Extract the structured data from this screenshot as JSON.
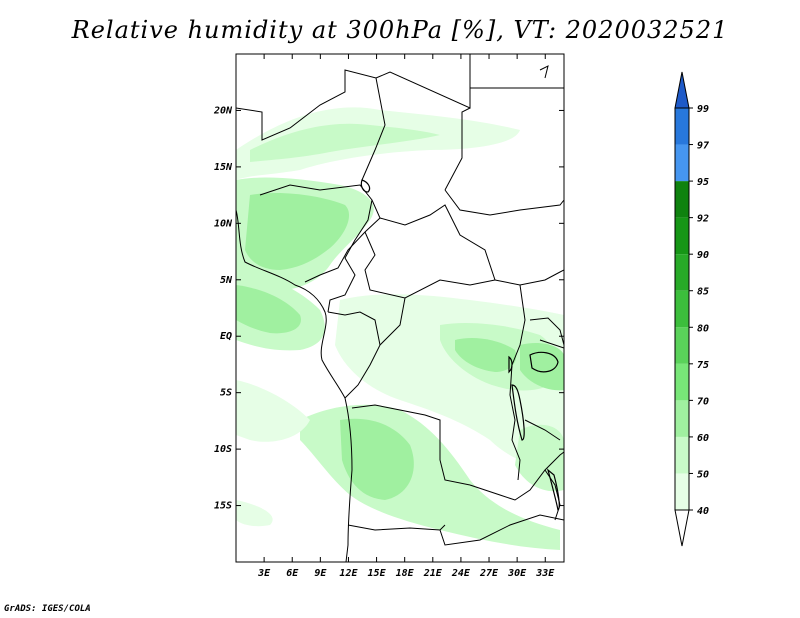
{
  "map": {
    "title": "Relative humidity at 300hPa [%], VT: 2020032521",
    "credit": "GrADS: IGES/COLA",
    "lat_labels": [
      "20N",
      "15N",
      "10N",
      "5N",
      "EQ",
      "5S",
      "10S",
      "15S"
    ],
    "lat_values": [
      20,
      15,
      10,
      5,
      0,
      -5,
      -10,
      -15
    ],
    "lon_labels": [
      "3E",
      "6E",
      "9E",
      "12E",
      "15E",
      "18E",
      "21E",
      "24E",
      "27E",
      "30E",
      "33E"
    ],
    "lon_values": [
      3,
      6,
      9,
      12,
      15,
      18,
      21,
      24,
      27,
      30,
      33
    ],
    "extent": {
      "lon": [
        0,
        35
      ],
      "lat": [
        -20,
        25
      ]
    }
  },
  "colorbar": {
    "levels": [
      "40",
      "50",
      "60",
      "70",
      "75",
      "80",
      "85",
      "90",
      "92",
      "95",
      "97",
      "99"
    ],
    "colors": [
      "#ffffff",
      "#e6fee6",
      "#c8fac8",
      "#a0f0a0",
      "#78e678",
      "#5ad25a",
      "#3cbe3c",
      "#28aa28",
      "#169616",
      "#0f820f",
      "#4696f0",
      "#2878dc",
      "#1e5ac8"
    ]
  }
}
